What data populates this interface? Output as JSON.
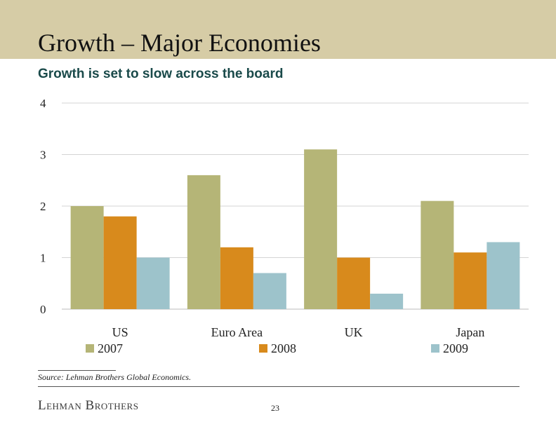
{
  "slide": {
    "title": "Growth – Major Economies",
    "subtitle": "Growth is set to slow across the board",
    "source": "Source: Lehman Brothers Global Economics.",
    "brand": "Lehman Brothers",
    "page_number": "23"
  },
  "colors": {
    "header_band": "#d6cca6",
    "series": [
      "#b5b577",
      "#d88a1c",
      "#9dc3cb"
    ]
  },
  "chart_data": {
    "type": "bar",
    "categories": [
      "US",
      "Euro Area",
      "UK",
      "Japan"
    ],
    "series": [
      {
        "name": "2007",
        "values": [
          2.0,
          2.6,
          3.1,
          2.1
        ]
      },
      {
        "name": "2008",
        "values": [
          1.8,
          1.2,
          1.0,
          1.1
        ]
      },
      {
        "name": "2009",
        "values": [
          1.0,
          0.7,
          0.3,
          1.3
        ]
      }
    ],
    "yticks": [
      0,
      1,
      2,
      3,
      4
    ],
    "ylim": [
      0,
      4
    ],
    "grid": true,
    "legend": "bottom"
  }
}
